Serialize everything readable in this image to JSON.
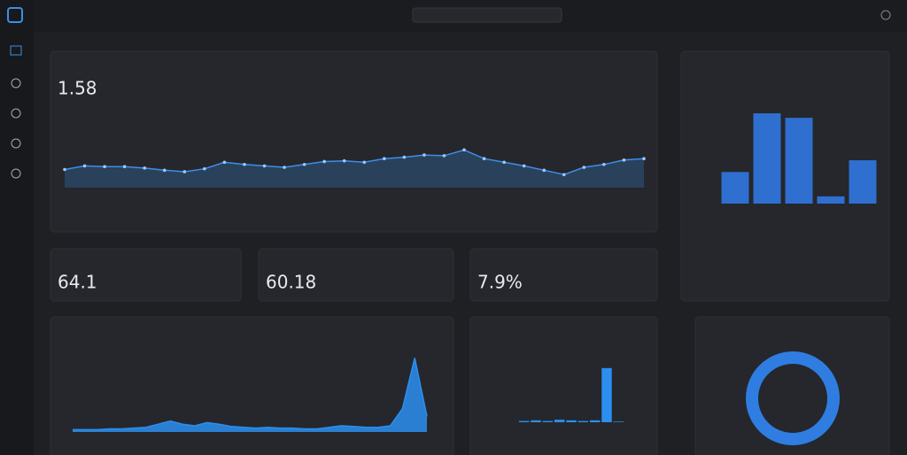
{
  "header": {
    "metric": "1.58"
  },
  "kpis": [
    "64.1",
    "60.18",
    "7.9%"
  ],
  "charts": [
    {
      "type": "line",
      "color": "#3d8ee8",
      "ylim": [
        0,
        100
      ],
      "values": [
        25,
        30,
        29,
        29,
        27,
        24,
        22,
        26,
        35,
        32,
        30,
        28,
        32,
        36,
        37,
        35,
        40,
        42,
        45,
        44,
        52,
        40,
        35,
        30,
        24,
        18,
        28,
        32,
        38,
        40
      ]
    },
    {
      "type": "bar",
      "color": "#2f6fd0",
      "ylim": [
        0,
        100
      ],
      "values": [
        35,
        100,
        95,
        8,
        48
      ]
    },
    {
      "type": "area",
      "color": "#2b8ff0",
      "ylim": [
        0,
        100
      ],
      "values": [
        3,
        3,
        3,
        4,
        4,
        5,
        6,
        10,
        14,
        10,
        8,
        12,
        10,
        7,
        6,
        5,
        6,
        5,
        5,
        4,
        4,
        6,
        8,
        7,
        6,
        6,
        8,
        30,
        95,
        20
      ]
    },
    {
      "type": "bar",
      "color": "#2b8ff0",
      "ylim": [
        0,
        100
      ],
      "values": [
        2,
        3,
        2,
        4,
        3,
        2,
        3,
        85,
        1
      ]
    },
    {
      "type": "pie",
      "color": "#2f7de1",
      "values": [
        100
      ]
    }
  ]
}
